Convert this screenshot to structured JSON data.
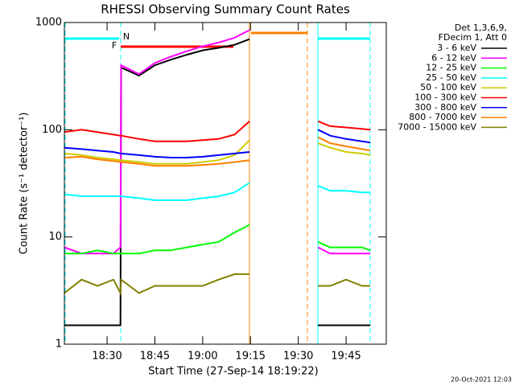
{
  "chart_data": {
    "type": "line",
    "title": "RHESSI Observing Summary Count Rates",
    "xlabel": "Start Time (27-Sep-14 18:19:22)",
    "ylabel": "Count Rate (s⁻¹ detector⁻¹)",
    "legend_title": [
      "Det 1,3,6,9,",
      "FDecim 1, Att 0"
    ],
    "footer": "20-Oct-2021 12:03",
    "annotations": [
      {
        "text": "F",
        "color": "#ff0000"
      },
      {
        "text": "N",
        "color": "#00ffff"
      }
    ],
    "log_y": true,
    "legend": "outside-right",
    "xlim": [
      16.6,
      117.6
    ],
    "xticks": [
      {
        "value": 30,
        "label": "18:30"
      },
      {
        "value": 45,
        "label": "18:45"
      },
      {
        "value": 60,
        "label": "19:00"
      },
      {
        "value": 75,
        "label": "19:15"
      },
      {
        "value": 90,
        "label": "19:30"
      },
      {
        "value": 105,
        "label": "19:45"
      }
    ],
    "ylim": [
      1,
      1000
    ],
    "yticks": [
      1,
      10,
      100,
      1000
    ],
    "x": [
      16.6,
      22,
      27,
      32,
      34.2,
      34.4,
      40,
      45,
      50,
      55,
      60,
      65,
      70,
      74.7,
      85,
      96.2,
      100,
      105,
      110,
      112.6
    ],
    "series": [
      {
        "name": "3 - 6 keV",
        "color": "#000000",
        "values": [
          1.5,
          1.5,
          1.5,
          1.5,
          1.5,
          380,
          320,
          400,
          450,
          500,
          550,
          580,
          620,
          700,
          null,
          1.5,
          1.5,
          1.5,
          1.5,
          1.5
        ]
      },
      {
        "name": "6 - 12 keV",
        "color": "#ff00ff",
        "values": [
          8,
          7,
          7,
          7,
          8,
          400,
          330,
          420,
          480,
          540,
          600,
          650,
          720,
          850,
          null,
          8,
          7,
          7,
          7,
          7
        ]
      },
      {
        "name": "12 - 25 keV",
        "color": "#00ff00",
        "values": [
          7,
          7,
          7.5,
          7,
          7,
          7,
          7,
          7.5,
          7.5,
          8,
          8.5,
          9,
          11,
          13,
          null,
          9,
          8,
          8,
          8,
          7.5
        ]
      },
      {
        "name": "25 - 50 keV",
        "color": "#00ffff",
        "values": [
          25,
          24,
          24,
          24,
          24,
          24,
          23,
          22,
          22,
          22,
          23,
          24,
          26,
          32,
          null,
          30,
          27,
          27,
          26,
          26
        ]
      },
      {
        "name": "50 - 100 keV",
        "color": "#cccc00",
        "values": [
          60,
          58,
          55,
          53,
          52,
          52,
          50,
          48,
          48,
          48,
          50,
          52,
          58,
          80,
          null,
          75,
          68,
          62,
          60,
          58
        ]
      },
      {
        "name": "100 - 300 keV",
        "color": "#ff0000",
        "values": [
          95,
          100,
          95,
          90,
          88,
          88,
          82,
          78,
          78,
          78,
          80,
          82,
          90,
          120,
          null,
          120,
          108,
          105,
          102,
          100
        ]
      },
      {
        "name": "300 - 800 keV",
        "color": "#0000ff",
        "values": [
          68,
          66,
          64,
          62,
          60,
          60,
          58,
          56,
          55,
          55,
          56,
          58,
          60,
          62,
          null,
          100,
          88,
          82,
          78,
          76
        ]
      },
      {
        "name": "800 - 7000 keV",
        "color": "#ff8000",
        "values": [
          55,
          56,
          53,
          51,
          50,
          50,
          48,
          46,
          46,
          46,
          47,
          48,
          50,
          52,
          null,
          85,
          75,
          70,
          66,
          64
        ]
      },
      {
        "name": "7000 - 15000 keV",
        "color": "#808000",
        "values": [
          3,
          4,
          3.5,
          4,
          3,
          4,
          3,
          3.5,
          3.5,
          3.5,
          3.5,
          4,
          4.5,
          4.5,
          null,
          3.5,
          3.5,
          4,
          3.5,
          3.5
        ]
      }
    ]
  }
}
